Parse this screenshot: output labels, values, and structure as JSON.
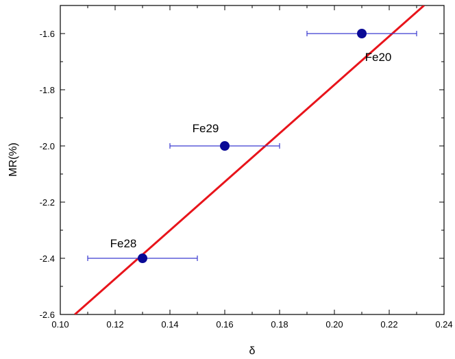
{
  "chart_data": {
    "type": "scatter",
    "xlabel": "δ",
    "ylabel": "MR(%)",
    "xlim": [
      0.1,
      0.24
    ],
    "ylim": [
      -2.6,
      -1.5
    ],
    "xticks": [
      0.1,
      0.12,
      0.14,
      0.16,
      0.18,
      0.2,
      0.22,
      0.24
    ],
    "xtick_labels": [
      "0.10",
      "0.12",
      "0.14",
      "0.16",
      "0.18",
      "0.20",
      "0.22",
      "0.24"
    ],
    "yticks": [
      -2.6,
      -2.4,
      -2.2,
      -2.0,
      -1.8,
      -1.6
    ],
    "ytick_labels": [
      "-2.6",
      "-2.4",
      "-2.2",
      "-2.0",
      "-1.8",
      "-1.6"
    ],
    "grid": false,
    "points": [
      {
        "label": "Fe28",
        "x": 0.13,
        "y": -2.4,
        "xerr": 0.02
      },
      {
        "label": "Fe29",
        "x": 0.16,
        "y": -2.0,
        "xerr": 0.02
      },
      {
        "label": "Fe20",
        "x": 0.21,
        "y": -1.6,
        "xerr": 0.02
      }
    ],
    "fit_line": {
      "x": [
        0.1053,
        0.2327
      ],
      "y": [
        -2.6,
        -1.5
      ],
      "color": "#e8141b"
    },
    "marker_color": "#0a0a96",
    "errorbar_color": "#3a3ad0"
  }
}
